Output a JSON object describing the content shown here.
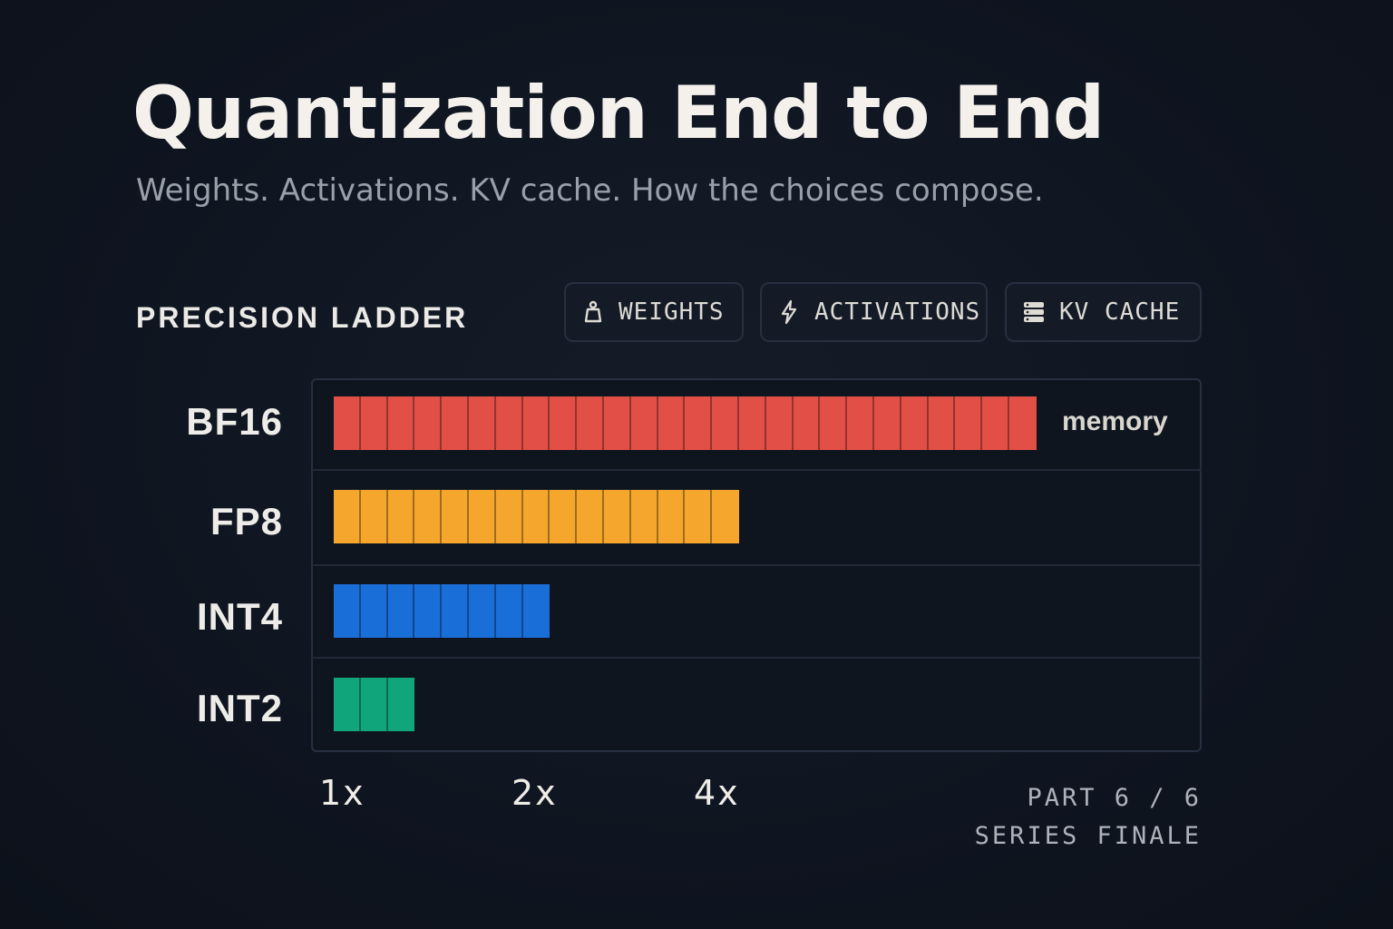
{
  "header": {
    "title": "Quantization End to End",
    "subtitle": "Weights. Activations. KV cache. How the choices compose."
  },
  "section_label": "PRECISION LADDER",
  "toggles": [
    {
      "label": "WEIGHTS",
      "icon": "weight-icon"
    },
    {
      "label": "ACTIVATIONS",
      "icon": "lightning-icon"
    },
    {
      "label": "KV CACHE",
      "icon": "database-icon"
    }
  ],
  "chart_data": {
    "type": "bar",
    "orientation": "horizontal",
    "categories": [
      "BF16",
      "FP8",
      "INT4",
      "INT2"
    ],
    "values": [
      26,
      15,
      8,
      3
    ],
    "colors": [
      "#e24f46",
      "#f5a72d",
      "#1a6ed8",
      "#10a57a"
    ],
    "value_label": "memory",
    "x_ticks": [
      "1x",
      "2x",
      "4x"
    ],
    "grid": false
  },
  "footer": {
    "part": "PART 6 / 6",
    "note": "SERIES FINALE"
  }
}
